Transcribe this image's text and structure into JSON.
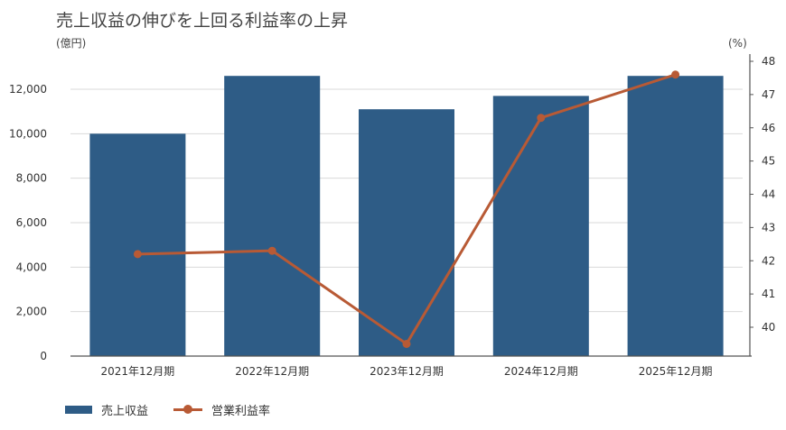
{
  "chart_data": {
    "type": "bar",
    "title": "売上収益の伸びを上回る利益率の上昇",
    "categories": [
      "2021年12月期",
      "2022年12月期",
      "2023年12月期",
      "2024年12月期",
      "2025年12月期"
    ],
    "series": [
      {
        "name": "売上収益",
        "type": "bar",
        "axis": "left",
        "color": "#2e5c86",
        "values": [
          10000,
          12600,
          11100,
          11700,
          12600
        ]
      },
      {
        "name": "営業利益率",
        "type": "line",
        "axis": "right",
        "color": "#b85a35",
        "values": [
          42.2,
          42.3,
          39.5,
          46.3,
          47.6
        ]
      }
    ],
    "ylabel": "(億円)",
    "y2label": "(%)",
    "ylim": [
      0,
      12000
    ],
    "y2lim": [
      39.5,
      48
    ],
    "yticks": [
      0,
      2000,
      4000,
      6000,
      8000,
      10000,
      12000
    ],
    "ytick_labels": [
      "0",
      "2,000",
      "4,000",
      "6,000",
      "8,000",
      "10,000",
      "12,000"
    ],
    "y2ticks": [
      40,
      41,
      42,
      43,
      44,
      45,
      46,
      47,
      48
    ],
    "y2tick_labels": [
      "40",
      "41",
      "42",
      "43",
      "44",
      "45",
      "46",
      "47",
      "48"
    ],
    "grid": true,
    "legend_position": "bottom-left"
  }
}
